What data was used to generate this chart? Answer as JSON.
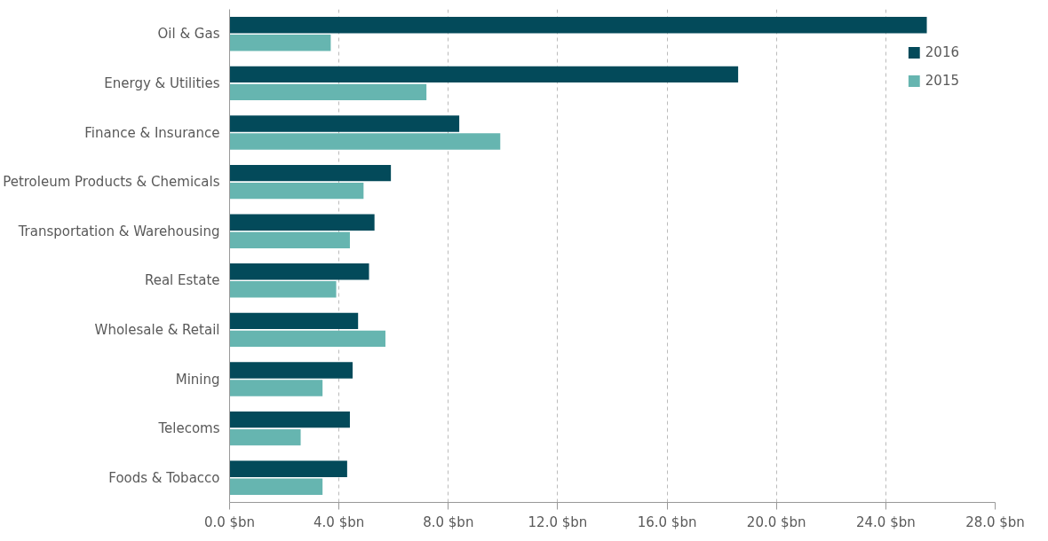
{
  "chart_data": {
    "type": "bar",
    "orientation": "horizontal",
    "categories": [
      "Oil & Gas",
      "Energy & Utilities",
      "Finance & Insurance",
      "Petroleum Products & Chemicals",
      "Transportation & Warehousing",
      "Real Estate",
      "Wholesale & Retail",
      "Mining",
      "Telecoms",
      "Foods & Tobacco"
    ],
    "series": [
      {
        "name": "2016",
        "color": "#034a5a",
        "values": [
          25.5,
          18.6,
          8.4,
          5.9,
          5.3,
          5.1,
          4.7,
          4.5,
          4.4,
          4.3
        ]
      },
      {
        "name": "2015",
        "color": "#66b5b0",
        "values": [
          3.7,
          7.2,
          9.9,
          4.9,
          4.4,
          3.9,
          5.7,
          3.4,
          2.6,
          3.4
        ]
      }
    ],
    "xlim": [
      0,
      28
    ],
    "xticks": [
      {
        "value": 0,
        "label": "0.0 $bn"
      },
      {
        "value": 4,
        "label": "4.0 $bn"
      },
      {
        "value": 8,
        "label": "8.0 $bn"
      },
      {
        "value": 12,
        "label": "12.0 $bn"
      },
      {
        "value": 16,
        "label": "16.0 $bn"
      },
      {
        "value": 20,
        "label": "20.0 $bn"
      },
      {
        "value": 24,
        "label": "24.0 $bn"
      },
      {
        "value": 28,
        "label": "28.0 $bn"
      }
    ],
    "grid": "x",
    "legend": "top right"
  }
}
